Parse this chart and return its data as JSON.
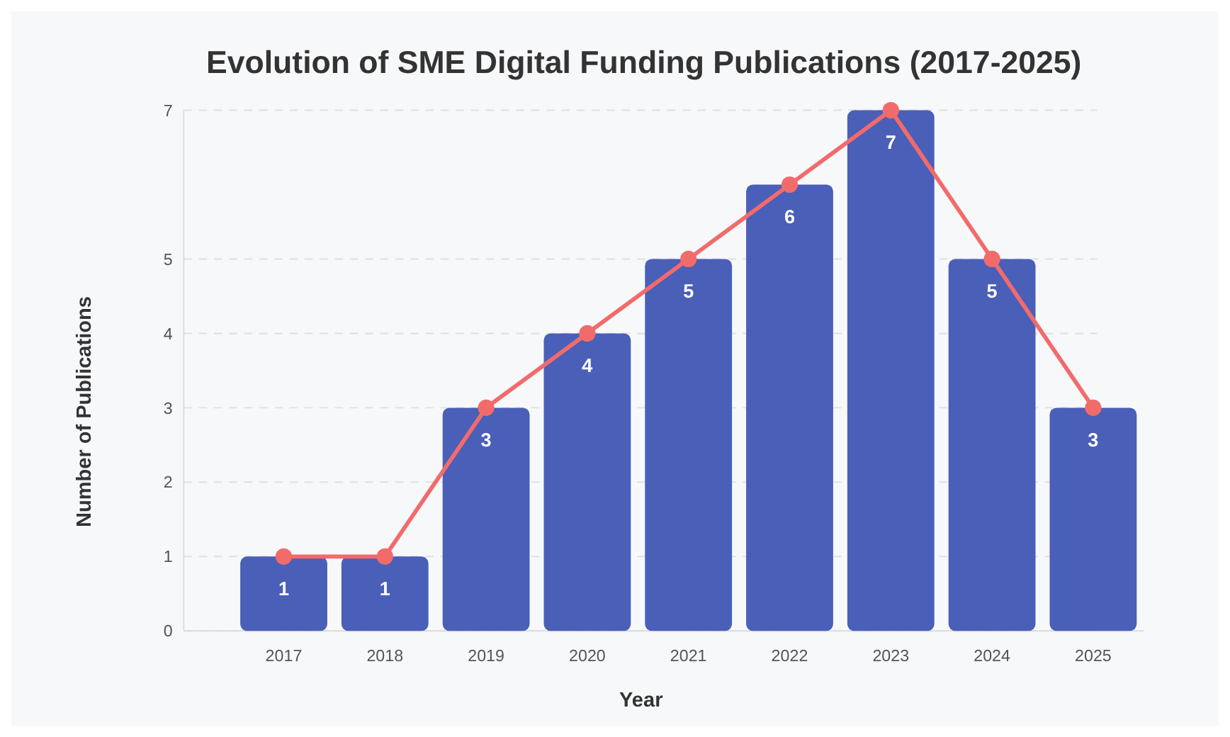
{
  "chart_data": {
    "type": "bar",
    "title": "Evolution of SME Digital Funding Publications (2017-2025)",
    "xlabel": "Year",
    "ylabel": "Number of Publications",
    "categories": [
      "2017",
      "2018",
      "2019",
      "2020",
      "2021",
      "2022",
      "2023",
      "2024",
      "2025"
    ],
    "series": [
      {
        "color": "#4a5fb8",
        "values": [
          1,
          1,
          3,
          4,
          5,
          6,
          7,
          5,
          3
        ],
        "value_labels": [
          "1",
          "1",
          "3",
          "4",
          "5",
          "6",
          "7",
          "5",
          "3"
        ]
      },
      {
        "type": "line",
        "color": "#f26b6b",
        "values": [
          1,
          1,
          3,
          4,
          5,
          6,
          7,
          5,
          3
        ]
      }
    ],
    "ylim": [
      0,
      7
    ],
    "yticks": [
      0,
      1,
      2,
      3,
      4,
      5,
      7
    ],
    "grid": "y",
    "marker": "circle",
    "line_style": "solid"
  }
}
